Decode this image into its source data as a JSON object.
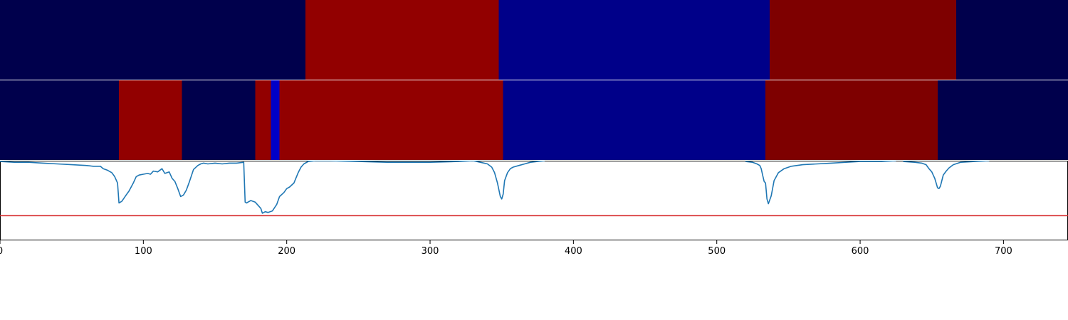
{
  "chart_data": [
    {
      "type": "heatmap",
      "xlim": [
        0,
        745
      ],
      "segments": [
        {
          "x0": 0,
          "x1": 213,
          "color": "#00004c"
        },
        {
          "x0": 213,
          "x1": 348,
          "color": "#920000"
        },
        {
          "x0": 348,
          "x1": 537,
          "color": "#000089"
        },
        {
          "x0": 537,
          "x1": 667,
          "color": "#7e0000"
        },
        {
          "x0": 667,
          "x1": 745,
          "color": "#00004c"
        }
      ]
    },
    {
      "type": "heatmap",
      "xlim": [
        0,
        745
      ],
      "segments": [
        {
          "x0": 0,
          "x1": 83,
          "color": "#00004c"
        },
        {
          "x0": 83,
          "x1": 127,
          "color": "#920000"
        },
        {
          "x0": 127,
          "x1": 178,
          "color": "#00004c"
        },
        {
          "x0": 178,
          "x1": 189,
          "color": "#920000"
        },
        {
          "x0": 189,
          "x1": 195,
          "color": "#0000c8"
        },
        {
          "x0": 195,
          "x1": 351,
          "color": "#920000"
        },
        {
          "x0": 351,
          "x1": 534,
          "color": "#000089"
        },
        {
          "x0": 534,
          "x1": 654,
          "color": "#7e0000"
        },
        {
          "x0": 654,
          "x1": 745,
          "color": "#00004c"
        }
      ]
    },
    {
      "type": "line",
      "xlim": [
        0,
        745
      ],
      "ylim": [
        0,
        1
      ],
      "xticks": [
        "0",
        "100",
        "200",
        "300",
        "400",
        "500",
        "600",
        "700"
      ],
      "threshold": 0.31,
      "threshold_color": "#d62728",
      "line_color": "#1f77b4",
      "series": [
        {
          "x": [
            0,
            10,
            20,
            30,
            40,
            50,
            60,
            65,
            70,
            72,
            75,
            78,
            80,
            82,
            83,
            85,
            88,
            90,
            93,
            95,
            97,
            100,
            103,
            105,
            107,
            110,
            113,
            115,
            118,
            120,
            122,
            124,
            126,
            128,
            130,
            132,
            135,
            138,
            140,
            142,
            145,
            150,
            155,
            160,
            165,
            170,
            171,
            172,
            173,
            175,
            178,
            180,
            182,
            183,
            185,
            187,
            190,
            193,
            195,
            198,
            200,
            202,
            205,
            208,
            210,
            212,
            215,
            220,
            230,
            250,
            270,
            300,
            320,
            330,
            335,
            340,
            343,
            345,
            347,
            349,
            350,
            351,
            352,
            354,
            356,
            358,
            362,
            366,
            370,
            375,
            380
          ],
          "y": [
            0.99,
            0.98,
            0.98,
            0.97,
            0.96,
            0.95,
            0.94,
            0.93,
            0.93,
            0.9,
            0.88,
            0.85,
            0.8,
            0.72,
            0.47,
            0.49,
            0.57,
            0.62,
            0.72,
            0.8,
            0.82,
            0.83,
            0.84,
            0.83,
            0.87,
            0.86,
            0.9,
            0.84,
            0.86,
            0.78,
            0.74,
            0.65,
            0.55,
            0.57,
            0.63,
            0.73,
            0.89,
            0.94,
            0.96,
            0.97,
            0.96,
            0.97,
            0.96,
            0.97,
            0.97,
            0.98,
            0.48,
            0.47,
            0.48,
            0.5,
            0.48,
            0.44,
            0.4,
            0.34,
            0.36,
            0.35,
            0.37,
            0.45,
            0.55,
            0.6,
            0.65,
            0.67,
            0.72,
            0.85,
            0.92,
            0.96,
            0.99,
            1.0,
            1.0,
            0.99,
            0.98,
            0.98,
            0.99,
            1.0,
            0.98,
            0.96,
            0.92,
            0.85,
            0.72,
            0.55,
            0.52,
            0.58,
            0.75,
            0.85,
            0.9,
            0.92,
            0.94,
            0.96,
            0.98,
            0.99,
            1.0
          ]
        },
        {
          "x": [
            520,
            525,
            528,
            530,
            531,
            532,
            533,
            534,
            535,
            536,
            538,
            540,
            543,
            547,
            552,
            560,
            570,
            580,
            590,
            600,
            615,
            625
          ],
          "y": [
            0.99,
            0.98,
            0.96,
            0.94,
            0.9,
            0.82,
            0.74,
            0.72,
            0.52,
            0.46,
            0.56,
            0.75,
            0.85,
            0.9,
            0.93,
            0.95,
            0.96,
            0.97,
            0.98,
            0.99,
            0.99,
            1.0
          ]
        },
        {
          "x": [
            630,
            638,
            643,
            646,
            648,
            650,
            651,
            652,
            653,
            654,
            655,
            656,
            657,
            658,
            660,
            662,
            665,
            670,
            680,
            690
          ],
          "y": [
            0.99,
            0.98,
            0.97,
            0.95,
            0.9,
            0.86,
            0.82,
            0.78,
            0.72,
            0.66,
            0.65,
            0.68,
            0.75,
            0.82,
            0.87,
            0.91,
            0.95,
            0.98,
            0.99,
            1.0
          ]
        }
      ]
    }
  ]
}
